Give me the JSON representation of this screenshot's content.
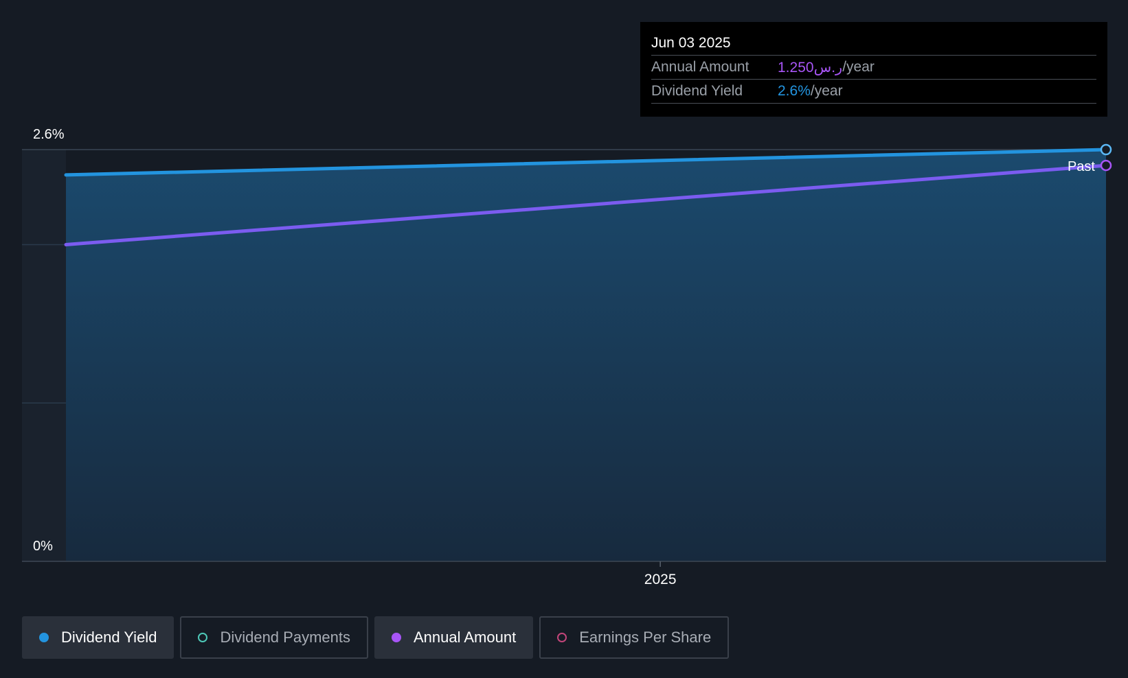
{
  "tooltip": {
    "date": "Jun 03 2025",
    "rows": [
      {
        "label": "Annual Amount",
        "value": "1.250ر.س",
        "unit": "/year",
        "color": "#a855f7"
      },
      {
        "label": "Dividend Yield",
        "value": "2.6%",
        "unit": "/year",
        "color": "#2394df"
      }
    ]
  },
  "legend": [
    {
      "label": "Dividend Yield",
      "color": "#2394df",
      "active": true
    },
    {
      "label": "Dividend Payments",
      "color": "#4ec9b8",
      "active": false
    },
    {
      "label": "Annual Amount",
      "color": "#a855f7",
      "active": true
    },
    {
      "label": "Earnings Per Share",
      "color": "#c2457a",
      "active": false
    }
  ],
  "chart_data": {
    "type": "line",
    "x_range": [
      2024.44,
      2025.42
    ],
    "x_ticks": [
      {
        "value": 2025.0,
        "label": "2025"
      }
    ],
    "y_range": [
      0,
      2.6
    ],
    "y_labels": [
      {
        "value": 2.6,
        "label": "2.6%"
      },
      {
        "value": 0,
        "label": "0%"
      }
    ],
    "gridlines": [
      2.6,
      2.0,
      1.0,
      0
    ],
    "series": [
      {
        "name": "Dividend Yield",
        "color": "#2394df",
        "area": true,
        "x": [
          2024.44,
          2025.42
        ],
        "y": [
          2.44,
          2.6
        ]
      },
      {
        "name": "Annual Amount",
        "color": "#7b5cf0",
        "x": [
          2024.44,
          2025.42
        ],
        "y": [
          2.0,
          2.5
        ]
      }
    ],
    "end_marker_label": "Past"
  }
}
